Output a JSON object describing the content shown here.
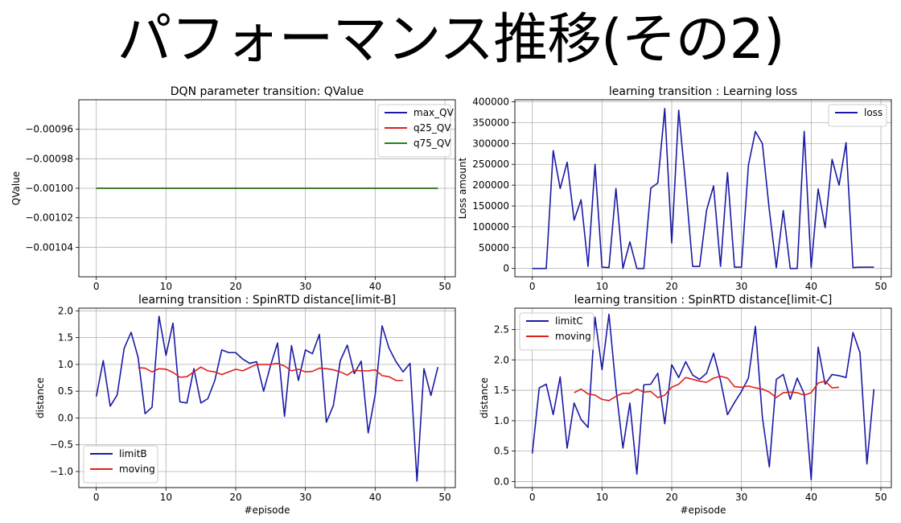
{
  "slide": {
    "title": "パフォーマンス推移(その2)"
  },
  "colors": {
    "navy": "#1a1aa6",
    "red": "#e0201c",
    "green": "#1a8a1a",
    "grid": "#b0b0b0"
  },
  "chart_data": [
    {
      "type": "line",
      "title": "DQN parameter transition: QValue",
      "xlabel": "",
      "ylabel": "QValue",
      "xlim": [
        -2.5,
        51.5
      ],
      "ylim": [
        -0.00106,
        -0.00094
      ],
      "xticks": [
        0,
        10,
        20,
        30,
        40,
        50
      ],
      "xtick_labels": [
        "0",
        "10",
        "20",
        "30",
        "40",
        "50"
      ],
      "yticks": [
        -0.00104,
        -0.00102,
        -0.001,
        -0.00098,
        -0.00096
      ],
      "ytick_labels": [
        "−0.00104",
        "−0.00102",
        "−0.00100",
        "−0.00098",
        "−0.00096"
      ],
      "grid": true,
      "legend_position": "upper right",
      "series": [
        {
          "name": "max_QV",
          "color": "#1a1aa6",
          "x": [
            0,
            49
          ],
          "y": [
            -0.001,
            -0.001
          ]
        },
        {
          "name": "q25_QV",
          "color": "#e0201c",
          "x": [
            0,
            49
          ],
          "y": [
            -0.001,
            -0.001
          ]
        },
        {
          "name": "q75_QV",
          "color": "#1a8a1a",
          "x": [
            0,
            49
          ],
          "y": [
            -0.001,
            -0.001
          ]
        }
      ]
    },
    {
      "type": "line",
      "title": "learning transition : Learning loss",
      "xlabel": "",
      "ylabel": "Loss amount",
      "xlim": [
        -2.5,
        51.5
      ],
      "ylim": [
        -20000,
        405000
      ],
      "xticks": [
        0,
        10,
        20,
        30,
        40,
        50
      ],
      "xtick_labels": [
        "0",
        "10",
        "20",
        "30",
        "40",
        "50"
      ],
      "yticks": [
        0,
        50000,
        100000,
        150000,
        200000,
        250000,
        300000,
        350000,
        400000
      ],
      "ytick_labels": [
        "0",
        "50000",
        "100000",
        "150000",
        "200000",
        "250000",
        "300000",
        "350000",
        "400000"
      ],
      "grid": true,
      "legend_position": "upper right",
      "series": [
        {
          "name": "loss",
          "color": "#1a1aa6",
          "x": [
            0,
            1,
            2,
            3,
            4,
            5,
            6,
            7,
            8,
            9,
            10,
            11,
            12,
            13,
            14,
            15,
            16,
            17,
            18,
            19,
            20,
            21,
            22,
            23,
            24,
            25,
            26,
            27,
            28,
            29,
            30,
            31,
            32,
            33,
            34,
            35,
            36,
            37,
            38,
            39,
            40,
            41,
            42,
            43,
            44,
            45,
            46,
            47,
            48,
            49
          ],
          "y": [
            0,
            0,
            0,
            283000,
            192000,
            255000,
            116000,
            165000,
            5000,
            250000,
            3000,
            2000,
            192000,
            0,
            64000,
            0,
            0,
            193000,
            205000,
            384000,
            61000,
            380000,
            200000,
            5000,
            5000,
            140000,
            198000,
            5000,
            230000,
            3000,
            3000,
            248000,
            329000,
            300000,
            140000,
            2000,
            139000,
            0,
            0,
            329000,
            2000,
            191000,
            98000,
            262000,
            200000,
            302000,
            2000,
            3000,
            3000,
            3000
          ]
        }
      ]
    },
    {
      "type": "line",
      "title": "learning transition : SpinRTD distance[limit-B]",
      "xlabel": "#episode",
      "ylabel": "distance",
      "xlim": [
        -2.5,
        51.5
      ],
      "ylim": [
        -1.3,
        2.05
      ],
      "xticks": [
        0,
        10,
        20,
        30,
        40,
        50
      ],
      "xtick_labels": [
        "0",
        "10",
        "20",
        "30",
        "40",
        "50"
      ],
      "yticks": [
        -1.0,
        -0.5,
        0.0,
        0.5,
        1.0,
        1.5,
        2.0
      ],
      "ytick_labels": [
        "−1.0",
        "−0.5",
        "0.0",
        "0.5",
        "1.0",
        "1.5",
        "2.0"
      ],
      "grid": true,
      "legend_position": "lower left",
      "series": [
        {
          "name": "limitB",
          "color": "#1a1aa6",
          "x": [
            0,
            1,
            2,
            3,
            4,
            5,
            6,
            7,
            8,
            9,
            10,
            11,
            12,
            13,
            14,
            15,
            16,
            17,
            18,
            19,
            20,
            21,
            22,
            23,
            24,
            25,
            26,
            27,
            28,
            29,
            30,
            31,
            32,
            33,
            34,
            35,
            36,
            37,
            38,
            39,
            40,
            41,
            42,
            43,
            44,
            45,
            46,
            47,
            48,
            49
          ],
          "y": [
            0.4,
            1.07,
            0.22,
            0.43,
            1.3,
            1.6,
            1.13,
            0.08,
            0.2,
            1.9,
            1.17,
            1.77,
            0.3,
            0.28,
            0.92,
            0.28,
            0.36,
            0.7,
            1.27,
            1.22,
            1.22,
            1.1,
            1.02,
            1.05,
            0.5,
            0.98,
            1.4,
            0.03,
            1.35,
            0.7,
            1.27,
            1.2,
            1.56,
            -0.08,
            0.23,
            1.07,
            1.36,
            0.83,
            1.06,
            -0.28,
            0.43,
            1.72,
            1.3,
            1.05,
            0.86,
            1.02,
            -1.18,
            0.92,
            0.42,
            0.95
          ]
        },
        {
          "name": "moving",
          "color": "#e0201c",
          "x": [
            6,
            7,
            8,
            9,
            10,
            11,
            12,
            13,
            14,
            15,
            16,
            17,
            18,
            19,
            20,
            21,
            22,
            23,
            24,
            25,
            26,
            27,
            28,
            29,
            30,
            31,
            32,
            33,
            34,
            35,
            36,
            37,
            38,
            39,
            40,
            41,
            42,
            43,
            44
          ],
          "y": [
            0.94,
            0.93,
            0.86,
            0.92,
            0.91,
            0.85,
            0.76,
            0.77,
            0.86,
            0.95,
            0.88,
            0.86,
            0.81,
            0.86,
            0.91,
            0.88,
            0.94,
            1.0,
            1.0,
            1.0,
            1.02,
            0.97,
            0.88,
            0.91,
            0.86,
            0.87,
            0.93,
            0.92,
            0.9,
            0.86,
            0.8,
            0.89,
            0.88,
            0.88,
            0.9,
            0.79,
            0.77,
            0.7,
            0.7
          ]
        }
      ]
    },
    {
      "type": "line",
      "title": "learning transition : SpinRTD distance[limit-C]",
      "xlabel": "#episode",
      "ylabel": "distance",
      "xlim": [
        -2.5,
        51.5
      ],
      "ylim": [
        -0.1,
        2.85
      ],
      "xticks": [
        0,
        10,
        20,
        30,
        40,
        50
      ],
      "xtick_labels": [
        "0",
        "10",
        "20",
        "30",
        "40",
        "50"
      ],
      "yticks": [
        0.0,
        0.5,
        1.0,
        1.5,
        2.0,
        2.5
      ],
      "ytick_labels": [
        "0.0",
        "0.5",
        "1.0",
        "1.5",
        "2.0",
        "2.5"
      ],
      "grid": true,
      "legend_position": "upper left",
      "series": [
        {
          "name": "limitC",
          "color": "#1a1aa6",
          "x": [
            0,
            1,
            2,
            3,
            4,
            5,
            6,
            7,
            8,
            9,
            10,
            11,
            12,
            13,
            14,
            15,
            16,
            17,
            18,
            19,
            20,
            21,
            22,
            23,
            24,
            25,
            26,
            27,
            28,
            29,
            30,
            31,
            32,
            33,
            34,
            35,
            36,
            37,
            38,
            39,
            40,
            41,
            42,
            43,
            44,
            45,
            46,
            47,
            48,
            49
          ],
          "y": [
            0.46,
            1.54,
            1.6,
            1.1,
            1.72,
            0.55,
            1.29,
            1.02,
            0.89,
            2.7,
            1.84,
            2.75,
            1.53,
            0.55,
            1.29,
            0.12,
            1.59,
            1.6,
            1.78,
            0.95,
            1.92,
            1.71,
            1.97,
            1.75,
            1.68,
            1.78,
            2.11,
            1.66,
            1.1,
            1.3,
            1.48,
            1.7,
            2.55,
            1.06,
            0.24,
            1.68,
            1.76,
            1.35,
            1.7,
            1.44,
            0.03,
            2.21,
            1.6,
            1.76,
            1.74,
            1.71,
            2.45,
            2.12,
            0.29,
            1.52
          ]
        },
        {
          "name": "moving",
          "color": "#e0201c",
          "x": [
            6,
            7,
            8,
            9,
            10,
            11,
            12,
            13,
            14,
            15,
            16,
            17,
            18,
            19,
            20,
            21,
            22,
            23,
            24,
            25,
            26,
            27,
            28,
            29,
            30,
            31,
            32,
            33,
            34,
            35,
            36,
            37,
            38,
            39,
            40,
            41,
            42,
            43,
            44
          ],
          "y": [
            1.46,
            1.52,
            1.44,
            1.42,
            1.35,
            1.33,
            1.4,
            1.45,
            1.45,
            1.52,
            1.47,
            1.48,
            1.38,
            1.42,
            1.55,
            1.6,
            1.71,
            1.68,
            1.65,
            1.63,
            1.7,
            1.73,
            1.7,
            1.56,
            1.55,
            1.57,
            1.54,
            1.52,
            1.47,
            1.38,
            1.46,
            1.47,
            1.46,
            1.42,
            1.46,
            1.62,
            1.65,
            1.54,
            1.55
          ]
        }
      ]
    }
  ]
}
